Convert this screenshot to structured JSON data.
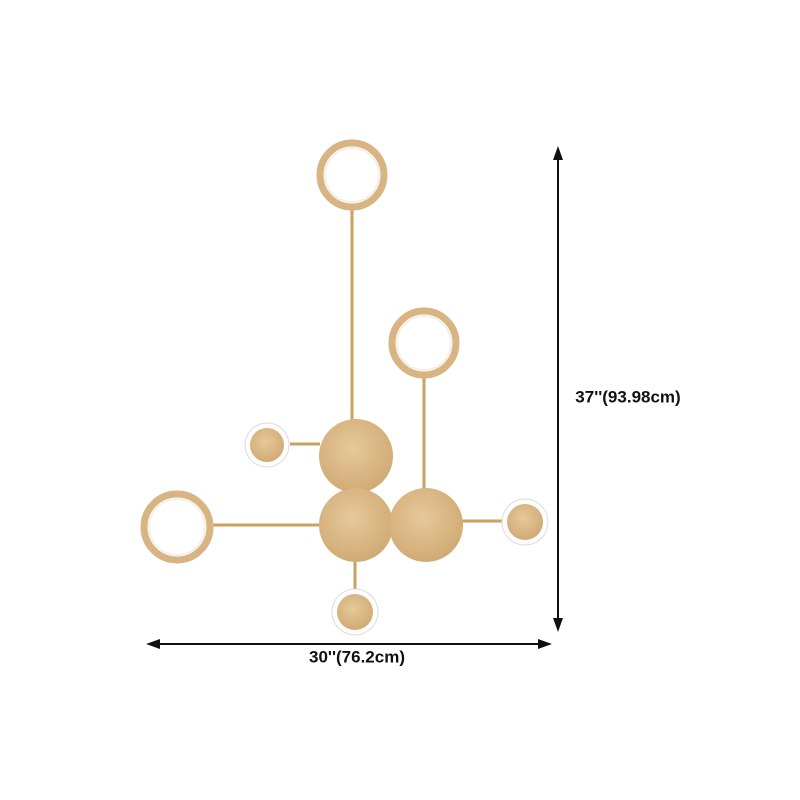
{
  "dimensions": {
    "height": "37''(93.98cm)",
    "width": "30''(76.2cm)"
  }
}
